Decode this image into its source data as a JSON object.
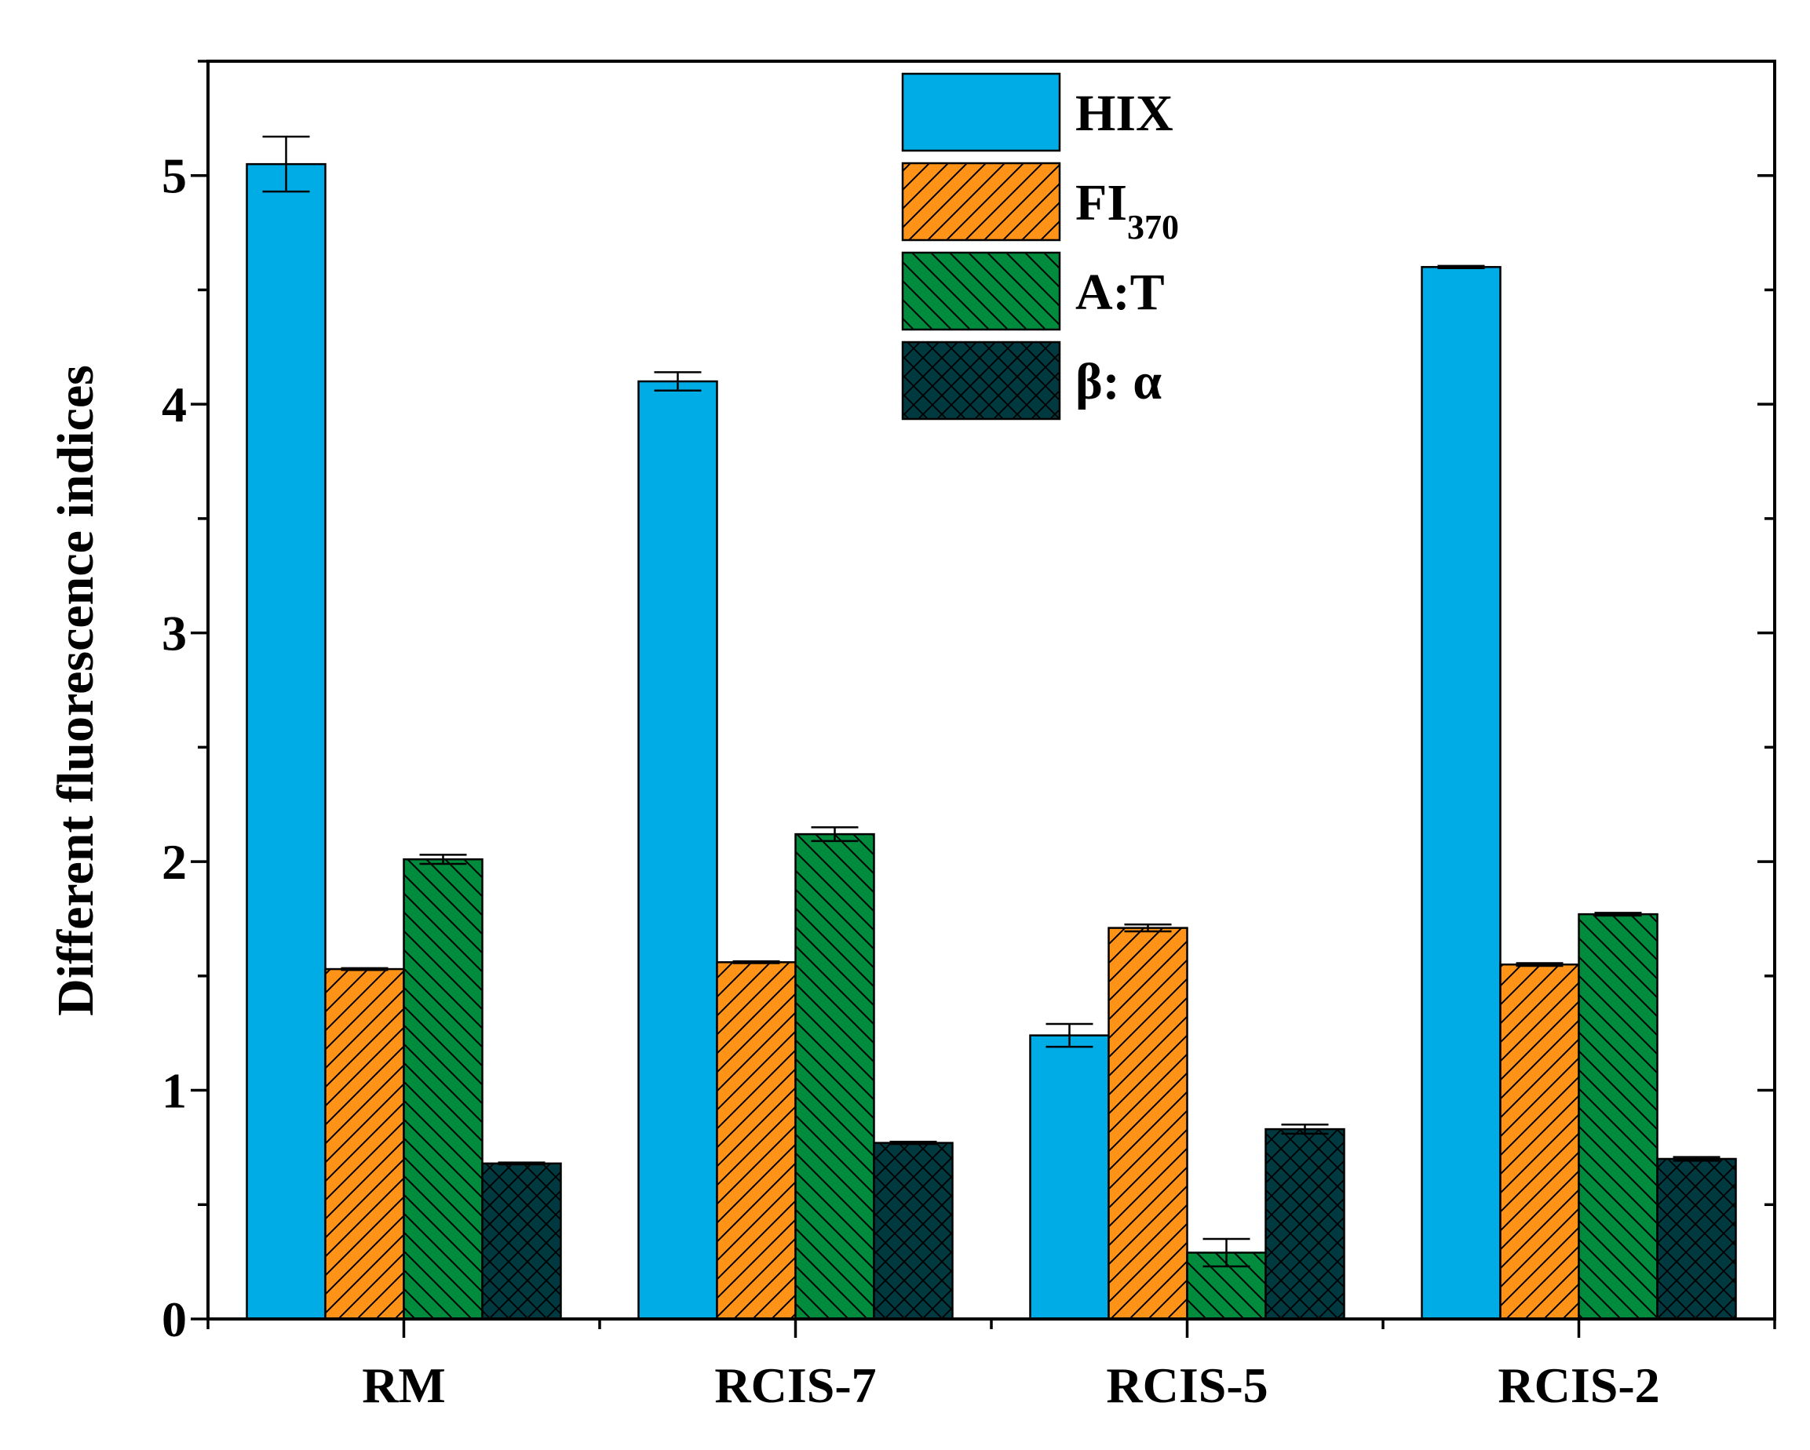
{
  "chart_data": {
    "type": "bar",
    "title": "",
    "xlabel": "",
    "ylabel": "Different fluorescence  indices",
    "ylim": [
      0,
      5.5
    ],
    "yticks": [
      "0",
      "1",
      "2",
      "3",
      "4",
      "5"
    ],
    "categories": [
      "RM",
      "RCIS-7",
      "RCIS-5",
      "RCIS-2"
    ],
    "legend_position": "top-center",
    "series": [
      {
        "name": "HIX",
        "legend": {
          "main": "HIX",
          "sub": ""
        },
        "color": "#00ACE6",
        "pattern": "solid",
        "values": [
          5.05,
          4.1,
          1.24,
          4.6
        ],
        "errors": [
          0.12,
          0.04,
          0.05,
          0.005
        ]
      },
      {
        "name": "FI370",
        "legend": {
          "main": "FI",
          "sub": "370"
        },
        "color": "#FF9317",
        "pattern": "forward-hatch",
        "values": [
          1.53,
          1.56,
          1.71,
          1.55
        ],
        "errors": [
          0.004,
          0.004,
          0.015,
          0.006
        ]
      },
      {
        "name": "A:T",
        "legend": {
          "main": "A:T",
          "sub": ""
        },
        "color": "#008C3C",
        "pattern": "back-hatch",
        "values": [
          2.01,
          2.12,
          0.29,
          1.77
        ],
        "errors": [
          0.02,
          0.03,
          0.06,
          0.006
        ]
      },
      {
        "name": "β: α",
        "legend": {
          "main": "β: α",
          "sub": ""
        },
        "color": "#003A40",
        "pattern": "cross-hatch",
        "values": [
          0.68,
          0.77,
          0.83,
          0.7
        ],
        "errors": [
          0.004,
          0.005,
          0.02,
          0.008
        ]
      }
    ]
  }
}
